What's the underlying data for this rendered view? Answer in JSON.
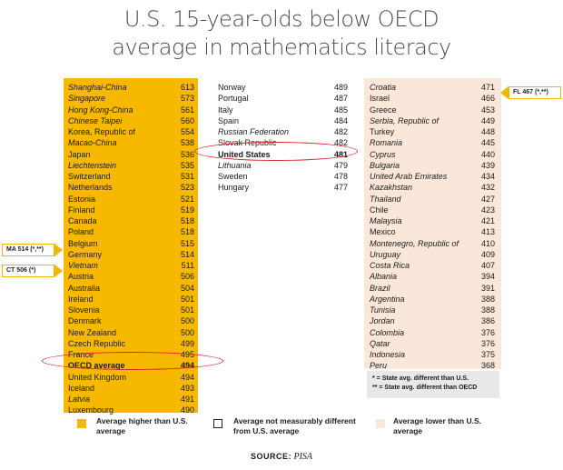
{
  "title_line1": "U.S. 15-year-olds below OECD",
  "title_line2": "average in mathematics literacy",
  "chart_data": {
    "type": "table",
    "title": "U.S. 15-year-olds below OECD average in mathematics literacy",
    "columns": [
      {
        "name": "Average higher than U.S. average",
        "rows": [
          {
            "name": "Shanghai-China",
            "value": "613",
            "italic": true
          },
          {
            "name": "Singapore",
            "value": "573",
            "italic": true
          },
          {
            "name": "Hong Kong-China",
            "value": "561",
            "italic": true
          },
          {
            "name": "Chinese Taipei",
            "value": "560",
            "italic": true
          },
          {
            "name": "Korea, Republic of",
            "value": "554",
            "italic": false
          },
          {
            "name": "Macao-China",
            "value": "538",
            "italic": true
          },
          {
            "name": "Japan",
            "value": "536",
            "italic": false
          },
          {
            "name": "Liechtenstein",
            "value": "535",
            "italic": true
          },
          {
            "name": "Switzerland",
            "value": "531",
            "italic": false
          },
          {
            "name": "Netherlands",
            "value": "523",
            "italic": false
          },
          {
            "name": "Estonia",
            "value": "521",
            "italic": false
          },
          {
            "name": "Finland",
            "value": "519",
            "italic": false
          },
          {
            "name": "Canada",
            "value": "518",
            "italic": false
          },
          {
            "name": "Poland",
            "value": "518",
            "italic": false
          },
          {
            "name": "Belgium",
            "value": "515",
            "italic": false
          },
          {
            "name": "Germany",
            "value": "514",
            "italic": false
          },
          {
            "name": "Vietnam",
            "value": "511",
            "italic": true
          },
          {
            "name": "Austria",
            "value": "506",
            "italic": false
          },
          {
            "name": "Australia",
            "value": "504",
            "italic": false
          },
          {
            "name": "Ireland",
            "value": "501",
            "italic": false
          },
          {
            "name": "Slovenia",
            "value": "501",
            "italic": false
          },
          {
            "name": "Denmark",
            "value": "500",
            "italic": false
          },
          {
            "name": "New Zealand",
            "value": "500",
            "italic": false
          },
          {
            "name": "Czech Republic",
            "value": "499",
            "italic": false
          },
          {
            "name": "France",
            "value": "495",
            "italic": false
          },
          {
            "name": "OECD average",
            "value": "494",
            "italic": false,
            "bold": true
          },
          {
            "name": "United Kingdom",
            "value": "494",
            "italic": false
          },
          {
            "name": "Iceland",
            "value": "493",
            "italic": false
          },
          {
            "name": "Latvia",
            "value": "491",
            "italic": true
          },
          {
            "name": "Luxembourg",
            "value": "490",
            "italic": false
          }
        ]
      },
      {
        "name": "Average not measurably different from U.S. average",
        "rows": [
          {
            "name": "Norway",
            "value": "489",
            "italic": false
          },
          {
            "name": "Portugal",
            "value": "487",
            "italic": false
          },
          {
            "name": "Italy",
            "value": "485",
            "italic": false
          },
          {
            "name": "Spain",
            "value": "484",
            "italic": false
          },
          {
            "name": "Russian Federation",
            "value": "482",
            "italic": true
          },
          {
            "name": "Slovak Republic",
            "value": "482",
            "italic": false
          },
          {
            "name": "United States",
            "value": "481",
            "italic": false,
            "bold": true
          },
          {
            "name": "Lithuania",
            "value": "479",
            "italic": true
          },
          {
            "name": "Sweden",
            "value": "478",
            "italic": false
          },
          {
            "name": "Hungary",
            "value": "477",
            "italic": false
          }
        ]
      },
      {
        "name": "Average lower than U.S. average",
        "rows": [
          {
            "name": "Croatia",
            "value": "471",
            "italic": true
          },
          {
            "name": "Israel",
            "value": "466",
            "italic": false
          },
          {
            "name": "Greece",
            "value": "453",
            "italic": false
          },
          {
            "name": "Serbia, Republic of",
            "value": "449",
            "italic": true
          },
          {
            "name": "Turkey",
            "value": "448",
            "italic": false
          },
          {
            "name": "Romania",
            "value": "445",
            "italic": true
          },
          {
            "name": "Cyprus",
            "value": "440",
            "italic": true
          },
          {
            "name": "Bulgaria",
            "value": "439",
            "italic": true
          },
          {
            "name": "United Arab Emirates",
            "value": "434",
            "italic": true
          },
          {
            "name": "Kazakhstan",
            "value": "432",
            "italic": true
          },
          {
            "name": "Thailand",
            "value": "427",
            "italic": true
          },
          {
            "name": "Chile",
            "value": "423",
            "italic": false
          },
          {
            "name": "Malaysia",
            "value": "421",
            "italic": true
          },
          {
            "name": "Mexico",
            "value": "413",
            "italic": false
          },
          {
            "name": "Montenegro, Republic of",
            "value": "410",
            "italic": true
          },
          {
            "name": "Uruguay",
            "value": "409",
            "italic": true
          },
          {
            "name": "Costa Rica",
            "value": "407",
            "italic": true
          },
          {
            "name": "Albania",
            "value": "394",
            "italic": true
          },
          {
            "name": "Brazil",
            "value": "391",
            "italic": true
          },
          {
            "name": "Argentina",
            "value": "388",
            "italic": true
          },
          {
            "name": "Tunisia",
            "value": "388",
            "italic": true
          },
          {
            "name": "Jordan",
            "value": "386",
            "italic": true
          },
          {
            "name": "Colombia",
            "value": "376",
            "italic": true
          },
          {
            "name": "Qatar",
            "value": "376",
            "italic": true
          },
          {
            "name": "Indonesia",
            "value": "375",
            "italic": true
          },
          {
            "name": "Peru",
            "value": "368",
            "italic": true
          }
        ]
      }
    ],
    "callouts": [
      {
        "label": "MA 514 (*,**)"
      },
      {
        "label": "CT 506 (*)"
      },
      {
        "label": "FL 467 (*,**)"
      }
    ],
    "notes": [
      "* = State avg. different than U.S.",
      "** = State avg. different than OECD"
    ],
    "legend": [
      {
        "label": "Average higher than U.S. average",
        "color": "#f7b900"
      },
      {
        "label": "Average not measurably different from U.S. average",
        "color": "#ffffff"
      },
      {
        "label": "Average lower than U.S. average",
        "color": "#fbe7d9"
      }
    ]
  },
  "source_label": "SOURCE:",
  "source_value": "PISA",
  "colors": {
    "high": "#f7b900",
    "low": "#fbe7d9",
    "highlight": "#d8262b"
  }
}
